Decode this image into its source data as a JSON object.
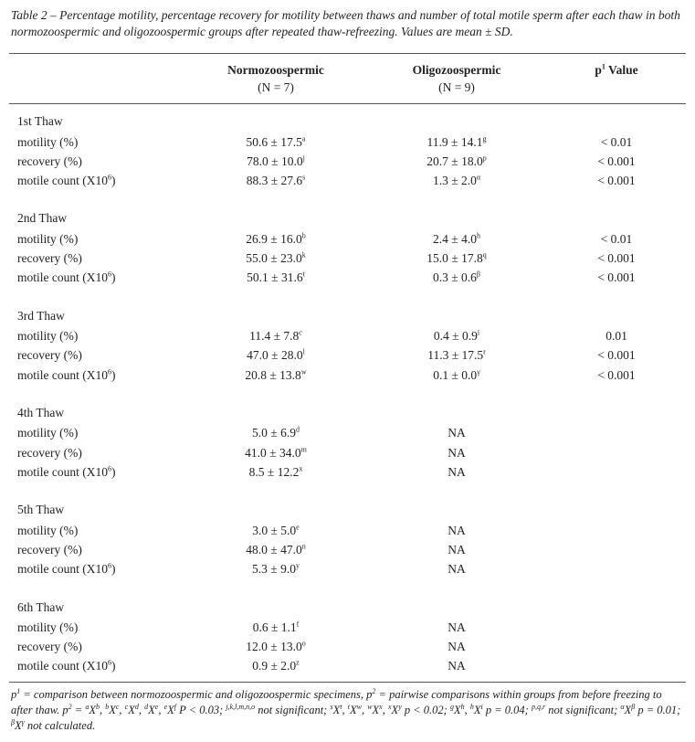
{
  "caption": "Table 2 – Percentage motility, percentage recovery for motility between thaws and number of total motile sperm after each thaw in both normozoospermic and oligozoospermic groups after repeated thaw-refreezing. Values are mean ± SD.",
  "table": {
    "header": [
      {
        "title": "Normozoospermic",
        "sub": "(N = 7)"
      },
      {
        "title": "Oligozoospermic",
        "sub": "(N = 9)"
      },
      {
        "text": "p",
        "sup": "1",
        "after": " Value"
      }
    ],
    "groups": [
      {
        "title": "1st Thaw",
        "rows": [
          {
            "label": {
              "text": "motility (%)"
            },
            "cells": [
              {
                "text": "50.6 ± 17.5",
                "sup": "a"
              },
              {
                "text": "11.9 ± 14.1",
                "sup": "g"
              },
              {
                "text": "< 0.01"
              }
            ]
          },
          {
            "label": {
              "text": "recovery (%)"
            },
            "cells": [
              {
                "text": "78.0 ± 10.0",
                "sup": "j"
              },
              {
                "text": "20.7 ± 18.0",
                "sup": "p"
              },
              {
                "text": "< 0.001"
              }
            ]
          },
          {
            "label": {
              "text": "motile count (X10",
              "sup": "6",
              "after": ")"
            },
            "cells": [
              {
                "text": "88.3 ± 27.6",
                "sup": "s"
              },
              {
                "text": "1.3 ± 2.0",
                "sup": "α"
              },
              {
                "text": "< 0.001"
              }
            ]
          }
        ]
      },
      {
        "title": "2nd Thaw",
        "rows": [
          {
            "label": {
              "text": "motility (%)"
            },
            "cells": [
              {
                "text": "26.9 ± 16.0",
                "sup": "b"
              },
              {
                "text": "2.4 ± 4.0",
                "sup": "h"
              },
              {
                "text": "< 0.01"
              }
            ]
          },
          {
            "label": {
              "text": "recovery (%)"
            },
            "cells": [
              {
                "text": "55.0 ± 23.0",
                "sup": "k"
              },
              {
                "text": "15.0 ± 17.8",
                "sup": "q"
              },
              {
                "text": "< 0.001"
              }
            ]
          },
          {
            "label": {
              "text": "motile count (X10",
              "sup": "6",
              "after": ")"
            },
            "cells": [
              {
                "text": "50.1 ± 31.6",
                "sup": "t"
              },
              {
                "text": "0.3 ± 0.6",
                "sup": "β"
              },
              {
                "text": "< 0.001"
              }
            ]
          }
        ]
      },
      {
        "title": "3rd Thaw",
        "rows": [
          {
            "label": {
              "text": "motility (%)"
            },
            "cells": [
              {
                "text": "11.4 ± 7.8",
                "sup": "c"
              },
              {
                "text": "0.4 ± 0.9",
                "sup": "i"
              },
              {
                "text": "0.01"
              }
            ]
          },
          {
            "label": {
              "text": "recovery (%)"
            },
            "cells": [
              {
                "text": "47.0 ± 28.0",
                "sup": "l"
              },
              {
                "text": "11.3 ± 17.5",
                "sup": "r"
              },
              {
                "text": "< 0.001"
              }
            ]
          },
          {
            "label": {
              "text": "motile count (X10",
              "sup": "6",
              "after": ")"
            },
            "cells": [
              {
                "text": "20.8 ± 13.8",
                "sup": "w"
              },
              {
                "text": "0.1 ± 0.0",
                "sup": "γ"
              },
              {
                "text": "< 0.001"
              }
            ]
          }
        ]
      },
      {
        "title": "4th Thaw",
        "rows": [
          {
            "label": {
              "text": "motility (%)"
            },
            "cells": [
              {
                "text": "5.0 ± 6.9",
                "sup": "d"
              },
              {
                "text": "NA"
              }
            ]
          },
          {
            "label": {
              "text": "recovery (%)"
            },
            "cells": [
              {
                "text": "41.0 ± 34.0",
                "sup": "m"
              },
              {
                "text": "NA"
              }
            ]
          },
          {
            "label": {
              "text": "motile count (X10",
              "sup": "6",
              "after": ")"
            },
            "cells": [
              {
                "text": "8.5 ± 12.2",
                "sup": "x"
              },
              {
                "text": "NA"
              }
            ]
          }
        ]
      },
      {
        "title": "5th Thaw",
        "rows": [
          {
            "label": {
              "text": "motility (%)"
            },
            "cells": [
              {
                "text": "3.0 ± 5.0",
                "sup": "e"
              },
              {
                "text": "NA"
              }
            ]
          },
          {
            "label": {
              "text": "recovery (%)"
            },
            "cells": [
              {
                "text": "48.0 ± 47.0",
                "sup": "n"
              },
              {
                "text": "NA"
              }
            ]
          },
          {
            "label": {
              "text": "motile count (X10",
              "sup": "6",
              "after": ")"
            },
            "cells": [
              {
                "text": "5.3 ± 9.0",
                "sup": "y"
              },
              {
                "text": "NA"
              }
            ]
          }
        ]
      },
      {
        "title": "6th Thaw",
        "rows": [
          {
            "label": {
              "text": "motility (%)"
            },
            "cells": [
              {
                "text": "0.6 ± 1.1",
                "sup": "f"
              },
              {
                "text": "NA"
              }
            ]
          },
          {
            "label": {
              "text": "recovery (%)"
            },
            "cells": [
              {
                "text": "12.0 ± 13.0",
                "sup": "o"
              },
              {
                "text": "NA"
              }
            ]
          },
          {
            "label": {
              "text": "motile count (X10",
              "sup": "6",
              "after": ")"
            },
            "cells": [
              {
                "text": "0.9 ± 2.0",
                "sup": "z"
              },
              {
                "text": "NA"
              }
            ]
          }
        ]
      }
    ]
  },
  "footnote": [
    {
      "text": "p"
    },
    {
      "sup": "1"
    },
    {
      "text": " = comparison between normozoospermic and oligozoospermic specimens, p"
    },
    {
      "sup": "2"
    },
    {
      "text": " = pairwise comparisons within groups from before freezing to after thaw. p"
    },
    {
      "sup": "2"
    },
    {
      "text": " = "
    },
    {
      "sup": "a"
    },
    {
      "text": "X"
    },
    {
      "sup": "b"
    },
    {
      "text": ", "
    },
    {
      "sup": "b"
    },
    {
      "text": "X"
    },
    {
      "sup": "c"
    },
    {
      "text": ", "
    },
    {
      "sup": "c"
    },
    {
      "text": "X"
    },
    {
      "sup": "d"
    },
    {
      "text": ", "
    },
    {
      "sup": "d"
    },
    {
      "text": "X"
    },
    {
      "sup": "e"
    },
    {
      "text": ", "
    },
    {
      "sup": "e"
    },
    {
      "text": "X"
    },
    {
      "sup": "f"
    },
    {
      "text": " P < 0.03; "
    },
    {
      "sup": "j,k,l,m,n,o"
    },
    {
      "text": " not significant; "
    },
    {
      "sup": "s"
    },
    {
      "text": "X"
    },
    {
      "sup": "t"
    },
    {
      "text": ", "
    },
    {
      "sup": "t"
    },
    {
      "text": "X"
    },
    {
      "sup": "w"
    },
    {
      "text": ", "
    },
    {
      "sup": "w"
    },
    {
      "text": "X"
    },
    {
      "sup": "x"
    },
    {
      "text": ", "
    },
    {
      "sup": "x"
    },
    {
      "text": "X"
    },
    {
      "sup": "y"
    },
    {
      "text": " p < 0.02; "
    },
    {
      "sup": "g"
    },
    {
      "text": "X"
    },
    {
      "sup": "h"
    },
    {
      "text": ", "
    },
    {
      "sup": "h"
    },
    {
      "text": "X"
    },
    {
      "sup": "i"
    },
    {
      "text": " p = 0.04; "
    },
    {
      "sup": "p,q,r"
    },
    {
      "text": " not significant; "
    },
    {
      "sup": "α"
    },
    {
      "text": "X"
    },
    {
      "sup": "β"
    },
    {
      "text": " p = 0.01; "
    },
    {
      "sup": "β"
    },
    {
      "text": "X"
    },
    {
      "sup": "γ"
    },
    {
      "text": " not calculated."
    }
  ]
}
